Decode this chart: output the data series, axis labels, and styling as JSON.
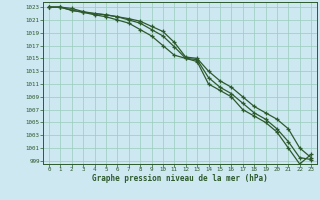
{
  "title": "Graphe pression niveau de la mer (hPa)",
  "bg_color": "#cde8f0",
  "grid_color": "#99ccbb",
  "line_color": "#2d5a2d",
  "xlim": [
    -0.5,
    23.5
  ],
  "ylim": [
    998.5,
    1023.8
  ],
  "yticks": [
    999,
    1001,
    1003,
    1005,
    1007,
    1009,
    1011,
    1013,
    1015,
    1017,
    1019,
    1021,
    1023
  ],
  "xticks": [
    0,
    1,
    2,
    3,
    4,
    5,
    6,
    7,
    8,
    9,
    10,
    11,
    12,
    13,
    14,
    15,
    16,
    17,
    18,
    19,
    20,
    21,
    22,
    23
  ],
  "line1": [
    1023,
    1023,
    1022.8,
    1022.3,
    1022,
    1021.8,
    1021.5,
    1021.2,
    1020.8,
    1020,
    1019.2,
    1017.5,
    1015.2,
    1015,
    1013,
    1011.5,
    1010.5,
    1009,
    1007.5,
    1006.5,
    1005.5,
    1004,
    1001,
    999.5
  ],
  "line2": [
    1023,
    1023,
    1022.5,
    1022.2,
    1022,
    1021.8,
    1021.5,
    1021,
    1020.5,
    1019.5,
    1018.5,
    1016.8,
    1015,
    1014.8,
    1012,
    1010.5,
    1009.5,
    1008,
    1006.5,
    1005.5,
    1004,
    1002,
    999.5,
    999.2
  ],
  "line3": [
    1023,
    1023,
    1022.5,
    1022.2,
    1021.8,
    1021.5,
    1021,
    1020.5,
    1019.5,
    1018.5,
    1017,
    1015.5,
    1015,
    1014.5,
    1011,
    1010,
    1009,
    1007,
    1006,
    1005,
    1003.5,
    1001,
    998.5,
    1000
  ]
}
